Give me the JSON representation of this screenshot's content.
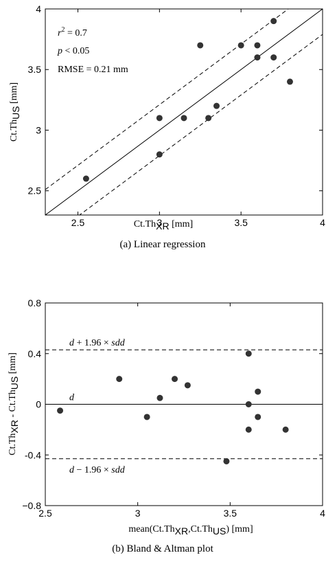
{
  "chart_data": [
    {
      "type": "scatter",
      "caption": "(a) Linear regression",
      "xlabel": {
        "main": "Ct.Th",
        "sub": "XR",
        "unit": "[mm]"
      },
      "ylabel": {
        "main": "Ct.Th",
        "sub": "US",
        "unit": "[mm]"
      },
      "xlim": [
        2.3,
        4
      ],
      "ylim": [
        2.3,
        4
      ],
      "xticks": [
        2.5,
        3,
        3.5,
        4
      ],
      "xtick_labels": [
        "2.5",
        "3",
        "3.5",
        "4"
      ],
      "yticks": [
        2.5,
        3,
        3.5,
        4
      ],
      "ytick_labels": [
        "2.5",
        "3",
        "3.5",
        "4"
      ],
      "grid": false,
      "annotations": [
        "r² = 0.7",
        "p < 0.05",
        "RMSE = 0.21 mm"
      ],
      "lines": [
        {
          "style": "solid",
          "slope": 1,
          "intercept": 0
        },
        {
          "style": "dashed",
          "slope": 1,
          "intercept": 0.21
        },
        {
          "style": "dashed",
          "slope": 1,
          "intercept": -0.21
        }
      ],
      "points": [
        [
          2.55,
          2.6
        ],
        [
          3.0,
          3.1
        ],
        [
          3.0,
          2.8
        ],
        [
          3.15,
          3.1
        ],
        [
          3.25,
          3.7
        ],
        [
          3.3,
          3.1
        ],
        [
          3.35,
          3.2
        ],
        [
          3.5,
          3.7
        ],
        [
          3.6,
          3.7
        ],
        [
          3.6,
          3.6
        ],
        [
          3.7,
          3.9
        ],
        [
          3.7,
          3.6
        ],
        [
          3.8,
          3.4
        ]
      ]
    },
    {
      "type": "scatter",
      "caption": "(b) Bland & Altman plot",
      "xlabel": {
        "pre": "mean(Ct.Th",
        "sub1": "XR",
        "mid": ",Ct.Th",
        "sub2": "US",
        "post": ") [mm]"
      },
      "ylabel": {
        "pre": "Ct.Th",
        "sub1": "XR",
        "mid": " - Ct.Th",
        "sub2": "US",
        "post": " [mm]"
      },
      "xlim": [
        2.5,
        4
      ],
      "ylim": [
        -0.8,
        0.8
      ],
      "xticks": [
        2.5,
        3,
        3.5,
        4
      ],
      "xtick_labels": [
        "2.5",
        "3",
        "3.5",
        "4"
      ],
      "yticks": [
        -0.8,
        -0.4,
        0,
        0.4,
        0.8
      ],
      "ytick_labels": [
        "−0.8",
        "-0.4",
        "0",
        "0.4",
        "0.8"
      ],
      "grid": false,
      "lines": [
        {
          "style": "dashed",
          "y": 0.43,
          "label": "d + 1.96 × sdd"
        },
        {
          "style": "solid",
          "y": 0,
          "label": "d"
        },
        {
          "style": "dashed",
          "y": -0.43,
          "label": "d − 1.96 × sdd"
        }
      ],
      "points": [
        [
          2.58,
          -0.05
        ],
        [
          2.9,
          0.2
        ],
        [
          3.05,
          -0.1
        ],
        [
          3.12,
          0.05
        ],
        [
          3.2,
          0.2
        ],
        [
          3.27,
          0.15
        ],
        [
          3.48,
          -0.45
        ],
        [
          3.6,
          0.4
        ],
        [
          3.6,
          0.0
        ],
        [
          3.6,
          -0.2
        ],
        [
          3.65,
          0.1
        ],
        [
          3.65,
          -0.1
        ],
        [
          3.8,
          -0.2
        ]
      ]
    }
  ]
}
